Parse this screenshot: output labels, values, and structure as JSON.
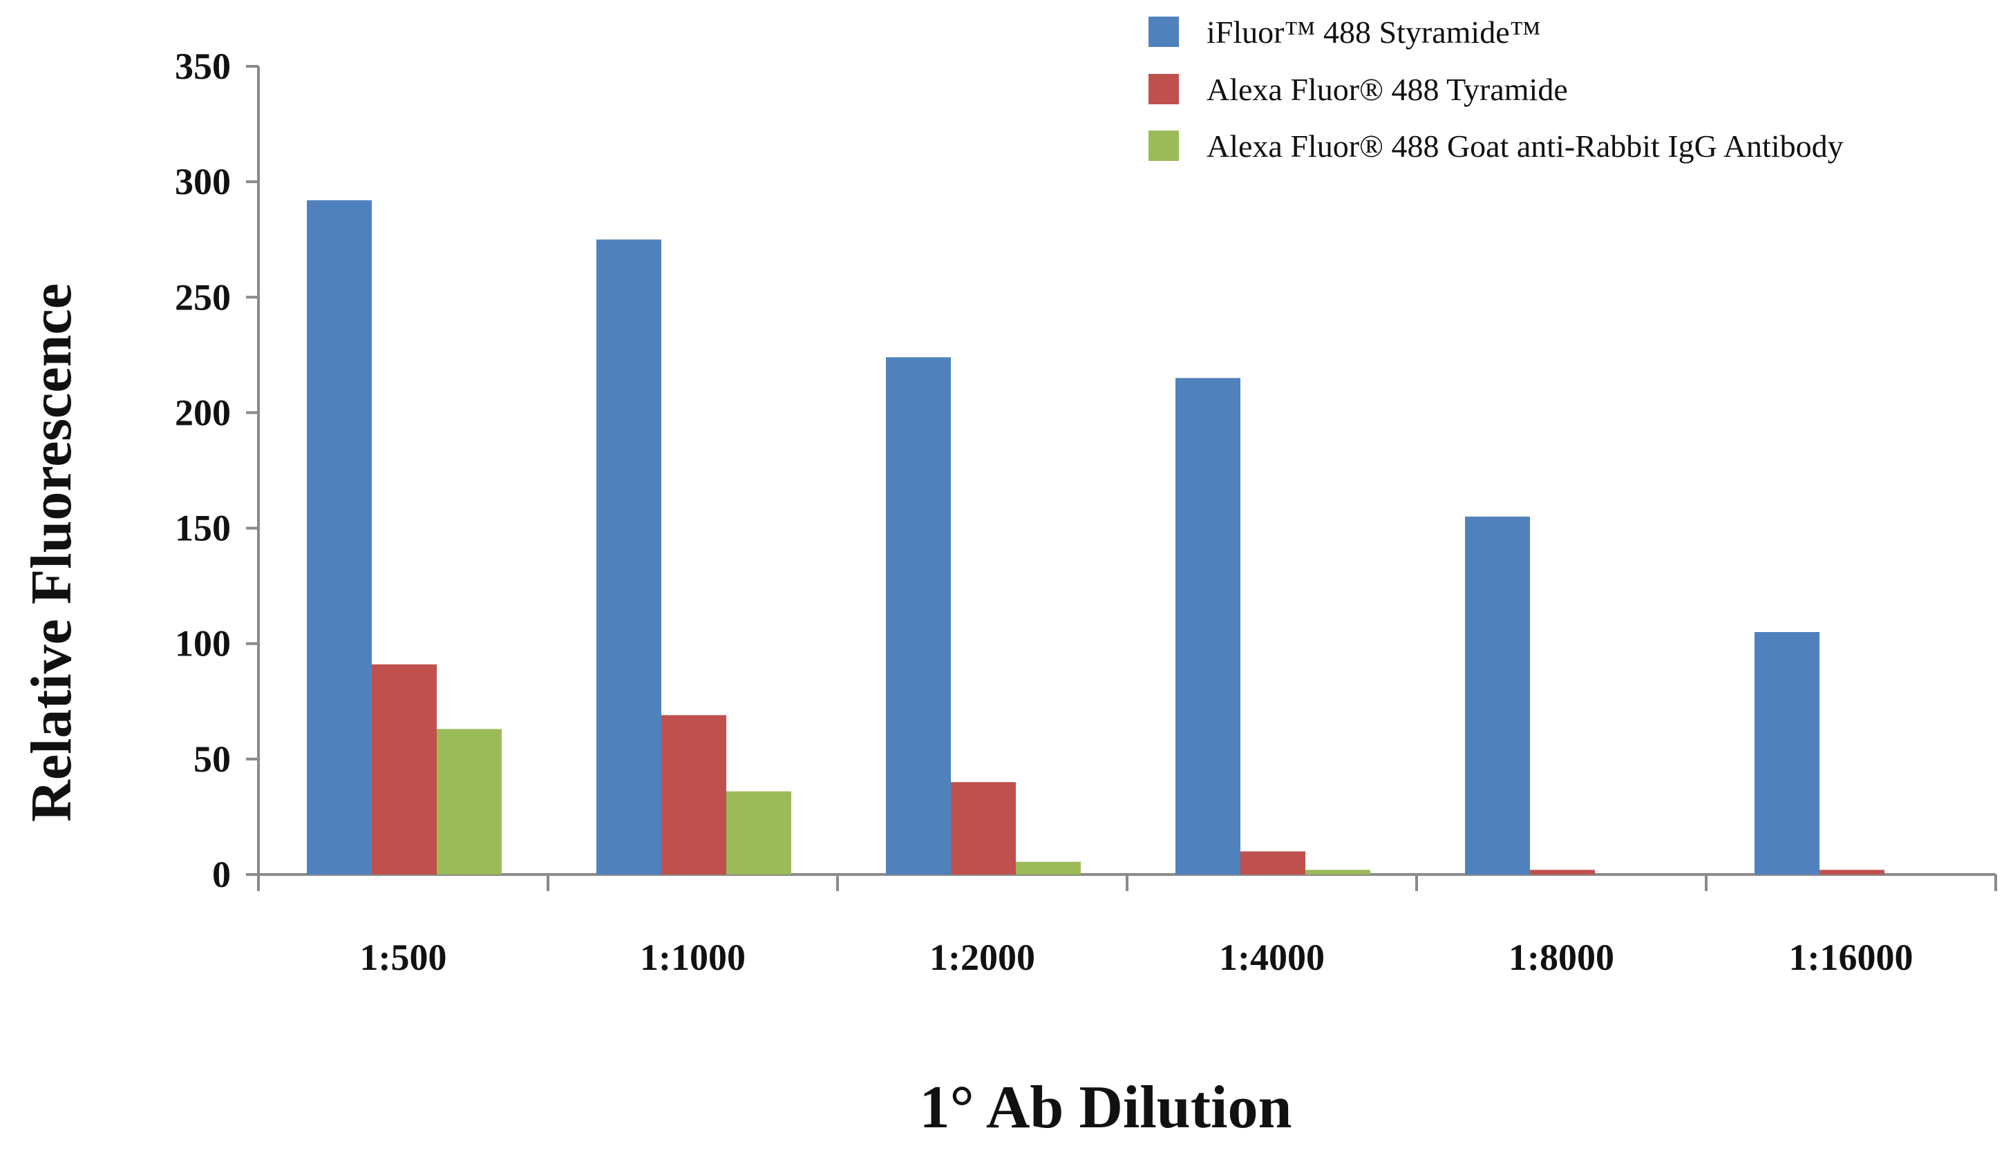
{
  "chart_data": {
    "type": "bar",
    "title": "",
    "xlabel": "1° Ab Dilution",
    "ylabel": "Relative Fluorescence",
    "ylim": [
      0,
      350
    ],
    "yticks": [
      0,
      50,
      100,
      150,
      200,
      250,
      300,
      350
    ],
    "grid": false,
    "legend_position": "top-right",
    "categories": [
      "1:500",
      "1:1000",
      "1:2000",
      "1:4000",
      "1:8000",
      "1:16000"
    ],
    "series": [
      {
        "name": "iFluor™ 488 Styramide™",
        "color": "#4F81BD",
        "values": [
          292,
          275,
          224,
          215,
          155,
          105
        ]
      },
      {
        "name": "Alexa Fluor® 488 Tyramide",
        "color": "#C0504D",
        "values": [
          91,
          69,
          40,
          10,
          2,
          2
        ]
      },
      {
        "name": "Alexa Fluor® 488 Goat anti-Rabbit IgG Antibody",
        "color": "#9BBB59",
        "values": [
          63,
          36,
          5.5,
          2,
          0,
          0
        ]
      }
    ]
  }
}
